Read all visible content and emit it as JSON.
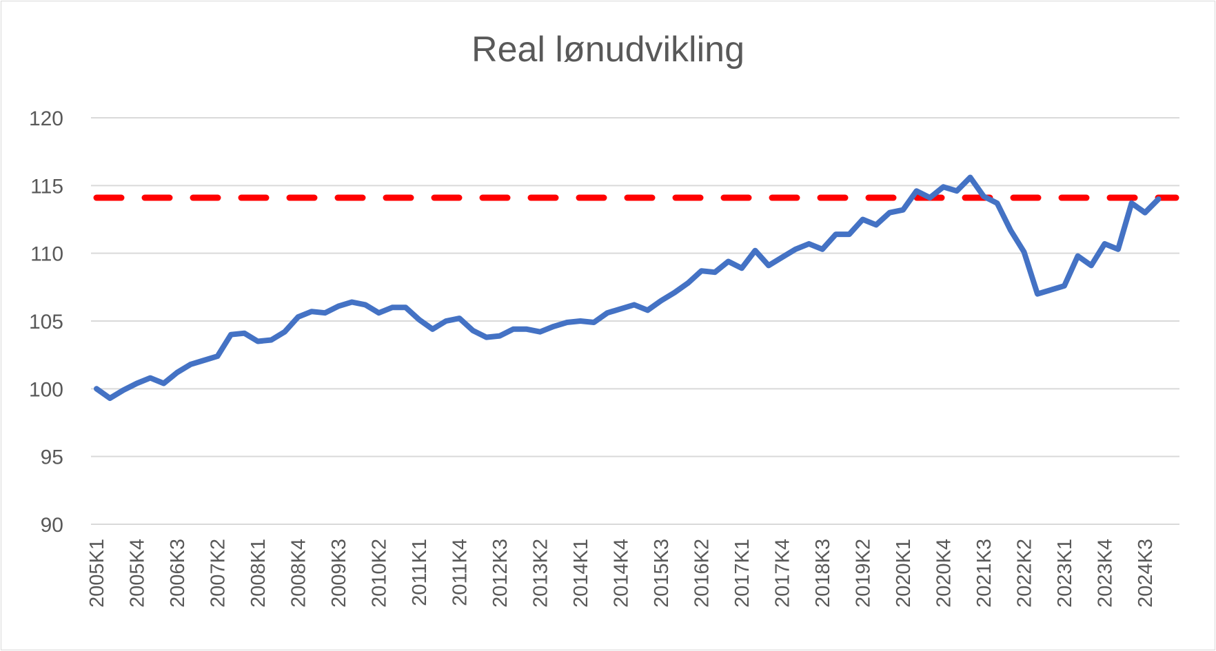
{
  "chart_data": {
    "type": "line",
    "title": "Real lønudvikling",
    "xlabel": "",
    "ylabel": "",
    "ylim": [
      90,
      120
    ],
    "yticks": [
      90,
      95,
      100,
      105,
      110,
      115,
      120
    ],
    "grid": true,
    "legend": "none",
    "categories": [
      "2005K1",
      "2005K2",
      "2005K3",
      "2005K4",
      "2006K1",
      "2006K2",
      "2006K3",
      "2006K4",
      "2007K1",
      "2007K2",
      "2007K3",
      "2007K4",
      "2008K1",
      "2008K2",
      "2008K3",
      "2008K4",
      "2009K1",
      "2009K2",
      "2009K3",
      "2009K4",
      "2010K1",
      "2010K2",
      "2010K3",
      "2010K4",
      "2011K1",
      "2011K2",
      "2011K3",
      "2011K4",
      "2012K1",
      "2012K2",
      "2012K3",
      "2012K4",
      "2013K1",
      "2013K2",
      "2013K3",
      "2013K4",
      "2014K1",
      "2014K2",
      "2014K3",
      "2014K4",
      "2015K1",
      "2015K2",
      "2015K3",
      "2015K4",
      "2016K1",
      "2016K2",
      "2016K3",
      "2016K4",
      "2017K1",
      "2017K2",
      "2017K3",
      "2017K4",
      "2018K1",
      "2018K2",
      "2018K3",
      "2018K4",
      "2019K1",
      "2019K2",
      "2019K3",
      "2019K4",
      "2020K1",
      "2020K2",
      "2020K3",
      "2020K4",
      "2021K1",
      "2021K2",
      "2021K3",
      "2021K4",
      "2022K1",
      "2022K2",
      "2022K3",
      "2022K4",
      "2023K1",
      "2023K2",
      "2023K3",
      "2023K4",
      "2024K1",
      "2024K2",
      "2024K3",
      "2024K4"
    ],
    "tick_label_every": 3,
    "series": [
      {
        "color": "#4472c4",
        "values": [
          100.0,
          99.3,
          99.9,
          100.4,
          100.8,
          100.4,
          101.2,
          101.8,
          102.1,
          102.4,
          104.0,
          104.1,
          103.5,
          103.6,
          104.2,
          105.3,
          105.7,
          105.6,
          106.1,
          106.4,
          106.2,
          105.6,
          106.0,
          106.0,
          105.1,
          104.4,
          105.0,
          105.2,
          104.3,
          103.8,
          103.9,
          104.4,
          104.4,
          104.2,
          104.6,
          104.9,
          105.0,
          104.9,
          105.6,
          105.9,
          106.2,
          105.8,
          106.5,
          107.1,
          107.8,
          108.7,
          108.6,
          109.4,
          108.9,
          110.2,
          109.1,
          109.7,
          110.3,
          110.7,
          110.3,
          111.4,
          111.4,
          112.5,
          112.1,
          113.0,
          113.2,
          114.6,
          114.1,
          114.9,
          114.6,
          115.6,
          114.2,
          113.7,
          111.7,
          110.1,
          107.0,
          107.3,
          107.6,
          109.8,
          109.1,
          110.7,
          110.3,
          113.7,
          113.0,
          114.0
        ]
      }
    ],
    "reference_line": {
      "value": 114.1,
      "color": "#ff0000",
      "style": "dashed"
    }
  }
}
